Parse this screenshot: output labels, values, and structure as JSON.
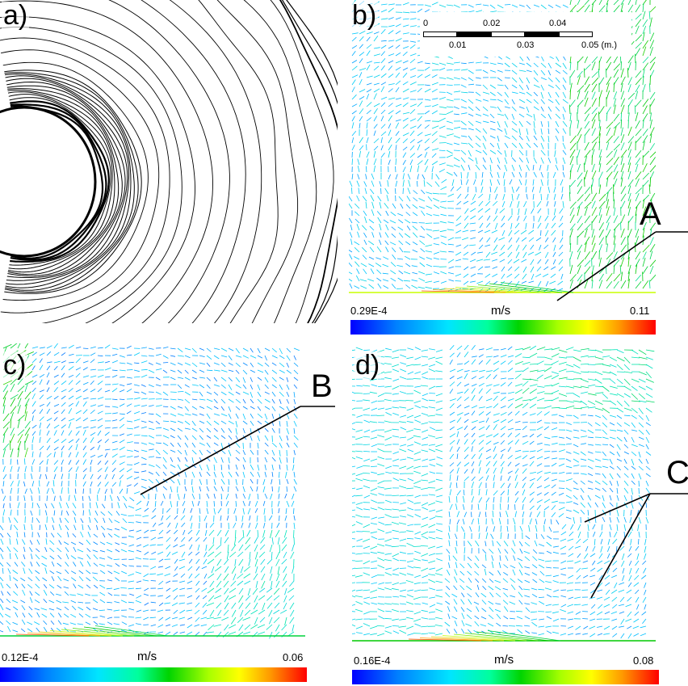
{
  "panels": {
    "a": {
      "label": "a)"
    },
    "b": {
      "label": "b)",
      "colorbar": {
        "min": "0.29E-4",
        "max": "0.11",
        "unit": "m/s"
      },
      "callout": "A"
    },
    "c": {
      "label": "c)",
      "colorbar": {
        "min": "0.12E-4",
        "max": "0.06",
        "unit": "m/s"
      },
      "callout": "B"
    },
    "d": {
      "label": "d)",
      "colorbar": {
        "min": "0.16E-4",
        "max": "0.08",
        "unit": "m/s"
      },
      "callout": "C"
    }
  },
  "scale_bar": {
    "top_ticks": [
      "0",
      "0.02",
      "0.04"
    ],
    "bottom_ticks": [
      "0.01",
      "0.03",
      "0.05 (m.)"
    ]
  },
  "colors": {
    "slow": "#0000ff",
    "mid": "#00e5ff",
    "green": "#00c800",
    "fast": "#ff0000",
    "contour": "#000000"
  }
}
